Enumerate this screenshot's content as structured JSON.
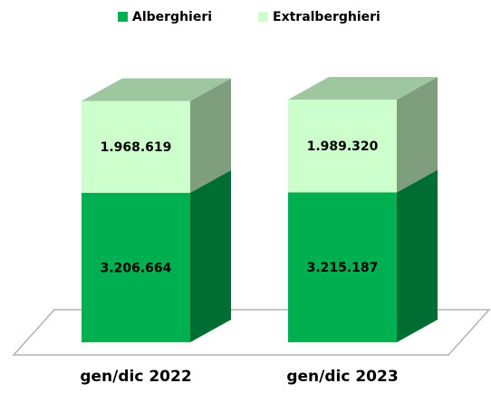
{
  "chart_data": {
    "type": "bar3d_stacked",
    "categories": [
      "gen/dic 2022",
      "gen/dic 2023"
    ],
    "series": [
      {
        "name": "Alberghieri",
        "color": "#00b050",
        "values": [
          3206664,
          3215187
        ],
        "value_labels": [
          "3.206.664",
          "3.215.187"
        ]
      },
      {
        "name": "Extralberghieri",
        "color": "#ccffcc",
        "values": [
          1968619,
          1989320
        ],
        "value_labels": [
          "1.968.619",
          "1.989.320"
        ]
      }
    ],
    "legend": "top"
  }
}
